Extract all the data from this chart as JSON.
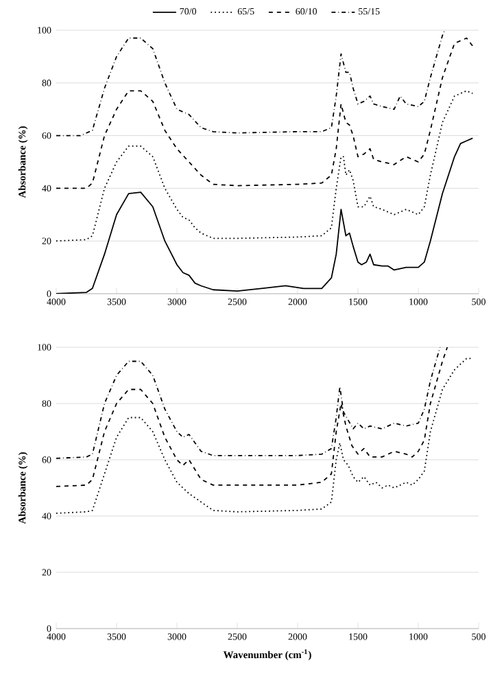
{
  "chart_data": [
    {
      "type": "line",
      "ylabel": "Absorbance (%)",
      "xlim": [
        4000,
        500
      ],
      "xticks": [
        4000,
        3500,
        3000,
        2500,
        2000,
        1500,
        1000,
        500
      ],
      "ylim": [
        0,
        100
      ],
      "yticks": [
        0,
        20,
        40,
        60,
        80,
        100
      ],
      "grid": "y",
      "legend": "top",
      "x": [
        4000,
        3750,
        3700,
        3600,
        3500,
        3400,
        3300,
        3200,
        3100,
        3000,
        2950,
        2900,
        2850,
        2800,
        2700,
        2500,
        2300,
        2100,
        1950,
        1800,
        1720,
        1680,
        1640,
        1600,
        1570,
        1540,
        1500,
        1470,
        1430,
        1400,
        1370,
        1300,
        1250,
        1200,
        1100,
        1000,
        950,
        900,
        800,
        700,
        650,
        600,
        550
      ],
      "series": [
        {
          "name": "70/0",
          "color": "#000000",
          "line_style": "solid",
          "values": [
            0,
            0.5,
            2,
            15,
            30,
            38,
            38.5,
            33,
            20,
            11,
            8,
            7,
            4,
            3,
            1.5,
            1,
            2,
            3,
            2,
            2,
            6,
            15,
            32,
            22,
            23,
            18,
            12,
            11,
            12,
            15,
            11,
            10.5,
            10.5,
            9,
            10,
            10,
            12,
            20,
            38,
            52,
            57,
            58,
            59
          ]
        },
        {
          "name": "65/5",
          "color": "#000000",
          "line_style": "dotted",
          "x": [
            4000,
            3750,
            3700,
            3600,
            3500,
            3400,
            3300,
            3200,
            3100,
            3000,
            2950,
            2900,
            2850,
            2800,
            2700,
            2500,
            2000,
            1800,
            1720,
            1680,
            1640,
            1620,
            1600,
            1570,
            1540,
            1500,
            1450,
            1400,
            1370,
            1300,
            1200,
            1100,
            1000,
            950,
            900,
            800,
            700,
            600,
            550
          ],
          "values": [
            20,
            20.5,
            22,
            40,
            50,
            56,
            56,
            52,
            40,
            32,
            29,
            28,
            25,
            23,
            21,
            21,
            21.5,
            22,
            25,
            40,
            52,
            52,
            45,
            47,
            43,
            33,
            33,
            37,
            33,
            32,
            30,
            32,
            30,
            33,
            45,
            65,
            75,
            77,
            76
          ]
        },
        {
          "name": "60/10",
          "color": "#000000",
          "line_style": "dashed",
          "x": [
            4000,
            3750,
            3700,
            3600,
            3500,
            3400,
            3300,
            3200,
            3100,
            3000,
            2900,
            2800,
            2700,
            2500,
            2000,
            1800,
            1720,
            1680,
            1640,
            1600,
            1570,
            1540,
            1500,
            1450,
            1400,
            1370,
            1300,
            1200,
            1100,
            1000,
            950,
            900,
            800,
            700,
            600,
            550
          ],
          "values": [
            40,
            40,
            42,
            60,
            70,
            77,
            77,
            73,
            62,
            55,
            50,
            45,
            41.5,
            41,
            41.5,
            42,
            45,
            55,
            72,
            65,
            64,
            60,
            52,
            53,
            55,
            51,
            50,
            49,
            52,
            50,
            53,
            62,
            82,
            95,
            97,
            94
          ]
        },
        {
          "name": "55/15",
          "color": "#000000",
          "line_style": "dashdot",
          "x": [
            4000,
            3800,
            3700,
            3600,
            3500,
            3400,
            3300,
            3200,
            3100,
            3000,
            2900,
            2800,
            2700,
            2500,
            2000,
            1800,
            1720,
            1680,
            1640,
            1600,
            1570,
            1540,
            1500,
            1450,
            1400,
            1370,
            1300,
            1200,
            1150,
            1100,
            1000,
            950,
            900,
            800,
            780
          ],
          "values": [
            60,
            60,
            62,
            78,
            90,
            97,
            97,
            93,
            80,
            70,
            68,
            63,
            61.5,
            61,
            61.5,
            61.5,
            63,
            75,
            91,
            84,
            84,
            78,
            72,
            73,
            75,
            72,
            71,
            70,
            75,
            72,
            71,
            73,
            82,
            98,
            100
          ]
        }
      ]
    },
    {
      "type": "line",
      "xlabel": "Wavenumber (cm$^{-1}$)",
      "ylabel": "Absorbance (%)",
      "xlim": [
        4000,
        500
      ],
      "xticks": [
        4000,
        3500,
        3000,
        2500,
        2000,
        1500,
        1000,
        500
      ],
      "ylim": [
        0,
        100
      ],
      "yticks": [
        0,
        20,
        40,
        60,
        80,
        100
      ],
      "grid": "y",
      "series": [
        {
          "color": "#000000",
          "line_style": "dotted",
          "x": [
            4000,
            3750,
            3700,
            3600,
            3500,
            3400,
            3300,
            3200,
            3100,
            3000,
            2900,
            2800,
            2700,
            2500,
            2000,
            1800,
            1720,
            1680,
            1650,
            1620,
            1580,
            1540,
            1500,
            1450,
            1400,
            1350,
            1300,
            1250,
            1200,
            1150,
            1100,
            1050,
            1000,
            950,
            900,
            800,
            700,
            600,
            550
          ],
          "values": [
            41,
            41.5,
            42,
            55,
            68,
            75,
            75,
            70,
            60,
            52,
            48,
            45,
            42,
            41.5,
            42,
            42.5,
            45,
            60,
            66,
            60,
            58,
            54,
            52,
            54,
            51,
            52,
            50,
            51,
            50,
            51,
            52,
            51,
            53,
            56,
            70,
            85,
            92,
            96,
            96
          ]
        },
        {
          "color": "#000000",
          "line_style": "dashed",
          "x": [
            4000,
            3750,
            3700,
            3600,
            3500,
            3400,
            3300,
            3200,
            3100,
            3000,
            2950,
            2900,
            2800,
            2700,
            2000,
            1800,
            1720,
            1680,
            1640,
            1600,
            1550,
            1500,
            1450,
            1400,
            1300,
            1200,
            1100,
            1050,
            1000,
            950,
            900,
            800,
            760
          ],
          "values": [
            50.5,
            51,
            53,
            70,
            80,
            85,
            85,
            80,
            68,
            60,
            58,
            60,
            53,
            51,
            51,
            52,
            55,
            70,
            80,
            72,
            65,
            62,
            64,
            61,
            61,
            63,
            62,
            61,
            63,
            67,
            80,
            95,
            100
          ]
        },
        {
          "color": "#000000",
          "line_style": "dashdot",
          "x": [
            4000,
            3750,
            3700,
            3600,
            3500,
            3400,
            3300,
            3200,
            3100,
            3000,
            2950,
            2900,
            2800,
            2700,
            2000,
            1800,
            1720,
            1680,
            1650,
            1620,
            1580,
            1540,
            1500,
            1450,
            1400,
            1300,
            1200,
            1100,
            1000,
            950,
            900,
            820
          ],
          "values": [
            60.5,
            61,
            62,
            80,
            90,
            95,
            95,
            90,
            78,
            70,
            68,
            69,
            63,
            61.5,
            61.5,
            62,
            64,
            75,
            86,
            77,
            74,
            71,
            73,
            71,
            72,
            71,
            73,
            72,
            73,
            78,
            88,
            100
          ]
        }
      ]
    }
  ]
}
